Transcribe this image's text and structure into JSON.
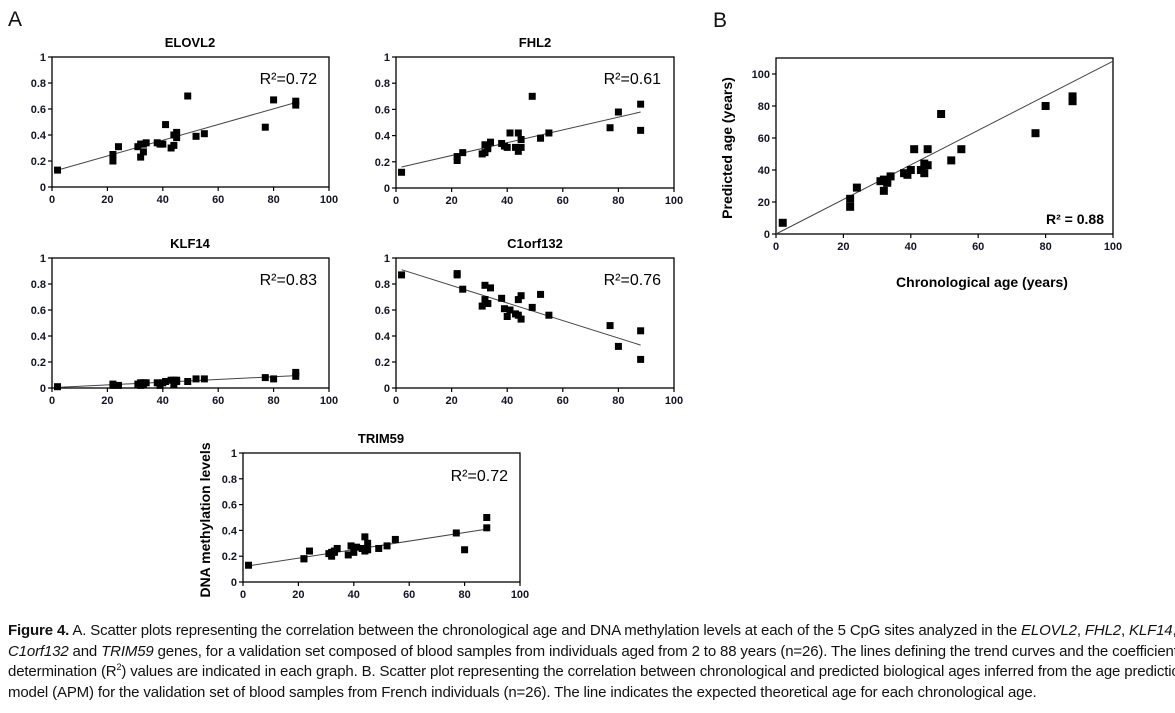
{
  "figure": {
    "panel_labels": [
      "A",
      "B"
    ]
  },
  "chart_data": [
    {
      "type": "scatter",
      "title": "ELOVL2",
      "r2_label": "R²=0.72",
      "xlim": [
        0,
        100
      ],
      "ylim": [
        0,
        1
      ],
      "xticks": [
        "0",
        "20",
        "40",
        "60",
        "80",
        "100"
      ],
      "yticks": [
        "0",
        "0.2",
        "0.4",
        "0.6",
        "0.8",
        "1"
      ],
      "x": [
        2,
        22,
        22,
        24,
        31,
        32,
        32,
        33,
        33,
        34,
        38,
        39,
        40,
        41,
        43,
        44,
        44,
        45,
        45,
        49,
        52,
        55,
        77,
        80,
        88,
        88
      ],
      "y": [
        0.13,
        0.25,
        0.2,
        0.31,
        0.31,
        0.33,
        0.23,
        0.27,
        0.33,
        0.34,
        0.34,
        0.33,
        0.33,
        0.48,
        0.3,
        0.32,
        0.4,
        0.42,
        0.38,
        0.7,
        0.39,
        0.41,
        0.46,
        0.67,
        0.63,
        0.66
      ],
      "trendline": {
        "x": [
          2,
          88
        ],
        "y": [
          0.13,
          0.65
        ]
      }
    },
    {
      "type": "scatter",
      "title": "FHL2",
      "r2_label": "R²=0.61",
      "xlim": [
        0,
        100
      ],
      "ylim": [
        0,
        1
      ],
      "xticks": [
        "0",
        "20",
        "40",
        "60",
        "80",
        "100"
      ],
      "yticks": [
        "0",
        "0.2",
        "0.4",
        "0.6",
        "0.8",
        "1"
      ],
      "x": [
        2,
        22,
        22,
        24,
        31,
        32,
        32,
        33,
        33,
        34,
        38,
        39,
        40,
        41,
        43,
        44,
        44,
        45,
        45,
        49,
        52,
        55,
        77,
        80,
        88,
        88
      ],
      "y": [
        0.12,
        0.24,
        0.21,
        0.27,
        0.26,
        0.33,
        0.27,
        0.3,
        0.31,
        0.35,
        0.34,
        0.32,
        0.31,
        0.42,
        0.31,
        0.28,
        0.42,
        0.37,
        0.31,
        0.7,
        0.38,
        0.42,
        0.46,
        0.58,
        0.64,
        0.44
      ],
      "trendline": {
        "x": [
          2,
          88
        ],
        "y": [
          0.16,
          0.58
        ]
      }
    },
    {
      "type": "scatter",
      "title": "KLF14",
      "r2_label": "R²=0.83",
      "xlim": [
        0,
        100
      ],
      "ylim": [
        0,
        1
      ],
      "xticks": [
        "0",
        "20",
        "40",
        "60",
        "80",
        "100"
      ],
      "yticks": [
        "0",
        "0.2",
        "0.4",
        "0.6",
        "0.8",
        "1"
      ],
      "x": [
        2,
        22,
        22,
        24,
        31,
        32,
        32,
        33,
        33,
        34,
        38,
        39,
        40,
        41,
        43,
        44,
        44,
        45,
        45,
        49,
        52,
        55,
        77,
        80,
        88,
        88
      ],
      "y": [
        0.01,
        0.03,
        0.02,
        0.02,
        0.03,
        0.04,
        0.02,
        0.03,
        0.04,
        0.04,
        0.04,
        0.02,
        0.04,
        0.05,
        0.06,
        0.03,
        0.06,
        0.05,
        0.06,
        0.05,
        0.07,
        0.07,
        0.08,
        0.07,
        0.12,
        0.09
      ],
      "trendline": {
        "x": [
          2,
          88
        ],
        "y": [
          0.005,
          0.095
        ]
      }
    },
    {
      "type": "scatter",
      "title": "C1orf132",
      "r2_label": "R²=0.76",
      "xlim": [
        0,
        100
      ],
      "ylim": [
        0,
        1
      ],
      "xticks": [
        "0",
        "20",
        "40",
        "60",
        "80",
        "100"
      ],
      "yticks": [
        "0",
        "0.2",
        "0.4",
        "0.6",
        "0.8",
        "1"
      ],
      "x": [
        2,
        22,
        22,
        24,
        31,
        32,
        32,
        33,
        33,
        34,
        38,
        39,
        40,
        41,
        43,
        44,
        44,
        45,
        45,
        49,
        52,
        55,
        77,
        80,
        88,
        88
      ],
      "y": [
        0.87,
        0.88,
        0.87,
        0.76,
        0.63,
        0.79,
        0.68,
        0.65,
        0.65,
        0.77,
        0.69,
        0.61,
        0.55,
        0.6,
        0.57,
        0.68,
        0.56,
        0.71,
        0.53,
        0.62,
        0.72,
        0.56,
        0.48,
        0.32,
        0.44,
        0.22
      ],
      "trendline": {
        "x": [
          2,
          88
        ],
        "y": [
          0.91,
          0.33
        ]
      }
    },
    {
      "type": "scatter",
      "title": "TRIM59",
      "r2_label": "R²=0.72",
      "ylabel": "DNA methylation levels",
      "xlim": [
        0,
        100
      ],
      "ylim": [
        0,
        1
      ],
      "xticks": [
        "0",
        "20",
        "40",
        "60",
        "80",
        "100"
      ],
      "yticks": [
        "0",
        "0.2",
        "0.4",
        "0.6",
        "0.8",
        "1"
      ],
      "x": [
        2,
        22,
        22,
        24,
        31,
        32,
        32,
        33,
        33,
        34,
        38,
        39,
        40,
        41,
        43,
        44,
        44,
        45,
        45,
        49,
        52,
        55,
        77,
        80,
        88,
        88
      ],
      "y": [
        0.13,
        0.18,
        0.18,
        0.24,
        0.22,
        0.2,
        0.23,
        0.24,
        0.23,
        0.26,
        0.21,
        0.28,
        0.23,
        0.27,
        0.26,
        0.35,
        0.24,
        0.3,
        0.25,
        0.26,
        0.28,
        0.33,
        0.38,
        0.25,
        0.5,
        0.42
      ],
      "trendline": {
        "x": [
          2,
          88
        ],
        "y": [
          0.125,
          0.41
        ]
      }
    },
    {
      "type": "scatter",
      "title": "",
      "r2_label": "R² = 0.88",
      "xlabel": "Chronological age (years)",
      "ylabel": "Predicted age (years)",
      "xlim": [
        0,
        100
      ],
      "ylim": [
        0,
        110
      ],
      "xticks": [
        "0",
        "20",
        "40",
        "60",
        "80",
        "100"
      ],
      "yticks": [
        "0",
        "20",
        "40",
        "60",
        "80",
        "100"
      ],
      "x": [
        2,
        22,
        22,
        24,
        31,
        32,
        32,
        33,
        33,
        34,
        38,
        39,
        40,
        41,
        43,
        44,
        44,
        45,
        45,
        49,
        52,
        55,
        77,
        80,
        88,
        88
      ],
      "y": [
        7,
        22,
        17,
        29,
        33,
        34,
        27,
        32,
        33,
        36,
        38,
        37,
        40,
        53,
        40,
        44,
        38,
        53,
        43,
        75,
        46,
        53,
        63,
        80,
        86,
        83
      ],
      "trendline": {
        "x": [
          0,
          100
        ],
        "y": [
          0,
          108
        ]
      }
    }
  ],
  "caption": {
    "lines": [
      [
        {
          "t": "Figure 4.",
          "s": "b"
        },
        {
          "t": " A. Scatter plots representing the correlation between the chronological age and DNA methylation levels at each of the 5 CpG sites analyzed in the ",
          "s": ""
        },
        {
          "t": "ELOVL2",
          "s": "i"
        },
        {
          "t": ", ",
          "s": ""
        },
        {
          "t": "FHL2",
          "s": "i"
        },
        {
          "t": ", ",
          "s": ""
        },
        {
          "t": "KLF14",
          "s": "i"
        },
        {
          "t": ",",
          "s": ""
        }
      ],
      [
        {
          "t": "C1orf132",
          "s": "i"
        },
        {
          "t": " and ",
          "s": ""
        },
        {
          "t": "TRIM59",
          "s": "i"
        },
        {
          "t": " genes, for a validation set composed of blood samples from individuals aged from 2 to 88 years (n=26). The lines defining the trend curves and the coefficient of",
          "s": ""
        }
      ],
      [
        {
          "t": "determination (R",
          "s": ""
        },
        {
          "t": "2",
          "s": "sup"
        },
        {
          "t": ") values are indicated in each graph. B. Scatter plot representing the correlation between chronological and predicted biological ages inferred from the age prediction",
          "s": ""
        }
      ],
      [
        {
          "t": "model (APM) for the validation set of blood samples from French individuals (n=26). The line indicates the expected theoretical age for each chronological age.",
          "s": ""
        }
      ]
    ]
  }
}
